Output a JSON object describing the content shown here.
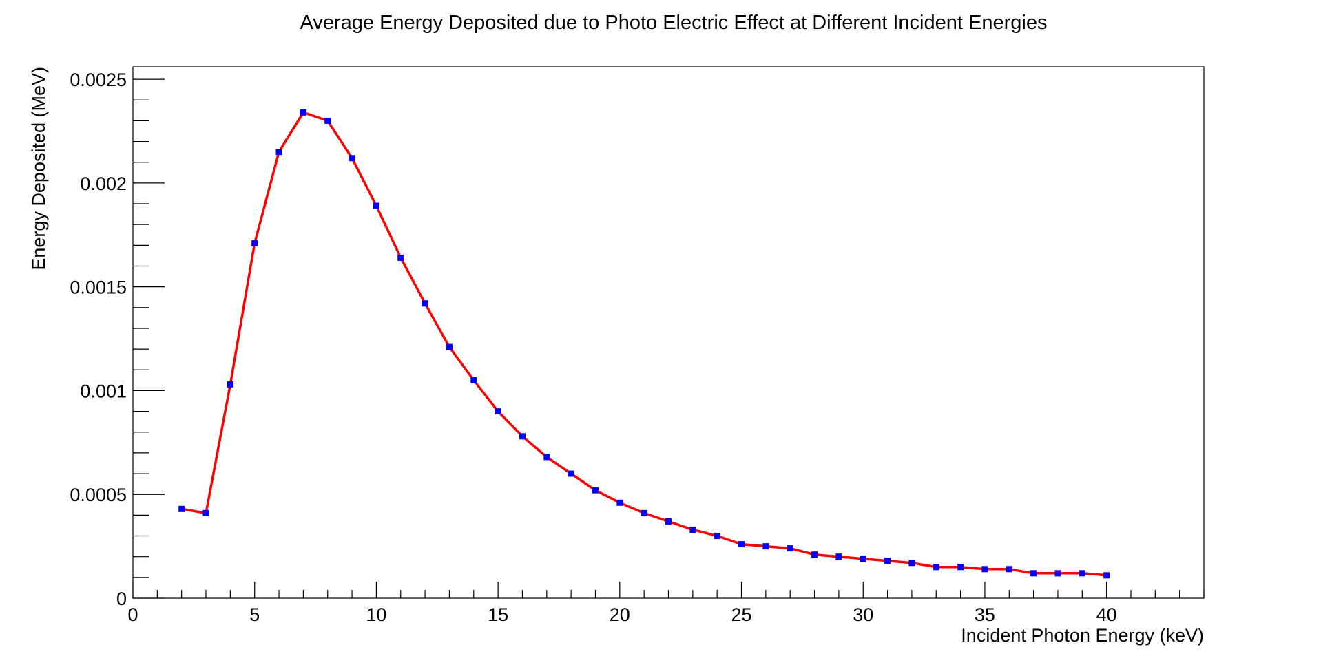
{
  "chart_data": {
    "type": "line",
    "title": "Average Energy Deposited due to Photo Electric Effect at Different Incident Energies",
    "xlabel": "Incident Photon Energy (keV)",
    "ylabel": "Energy Deposited (MeV)",
    "xlim": [
      0,
      44
    ],
    "ylim": [
      0,
      0.00256
    ],
    "x_ticks": [
      0,
      5,
      10,
      15,
      20,
      25,
      30,
      35,
      40
    ],
    "x_tick_labels": [
      "0",
      "5",
      "10",
      "15",
      "20",
      "25",
      "30",
      "35",
      "40"
    ],
    "y_ticks": [
      0,
      0.0005,
      0.001,
      0.0015,
      0.002,
      0.0025
    ],
    "y_tick_labels": [
      "0",
      "0.0005",
      "0.001",
      "0.0015",
      "0.002",
      "0.0025"
    ],
    "grid": false,
    "series": [
      {
        "line_color": "#ff0000",
        "marker_color": "#0000ff",
        "x": [
          2,
          3,
          4,
          5,
          6,
          7,
          8,
          9,
          10,
          11,
          12,
          13,
          14,
          15,
          16,
          17,
          18,
          19,
          20,
          21,
          22,
          23,
          24,
          25,
          26,
          27,
          28,
          29,
          30,
          31,
          32,
          33,
          34,
          35,
          36,
          37,
          38,
          39,
          40
        ],
        "y": [
          0.00043,
          0.00041,
          0.00103,
          0.00171,
          0.00215,
          0.00234,
          0.0023,
          0.00212,
          0.00189,
          0.00164,
          0.00142,
          0.00121,
          0.00105,
          0.0009,
          0.00078,
          0.00068,
          0.0006,
          0.00052,
          0.00046,
          0.00041,
          0.00037,
          0.00033,
          0.0003,
          0.00026,
          0.00025,
          0.00024,
          0.00021,
          0.0002,
          0.00019,
          0.00018,
          0.00017,
          0.00015,
          0.00015,
          0.00014,
          0.00014,
          0.00012,
          0.00012,
          0.00012,
          0.00011
        ]
      }
    ]
  }
}
